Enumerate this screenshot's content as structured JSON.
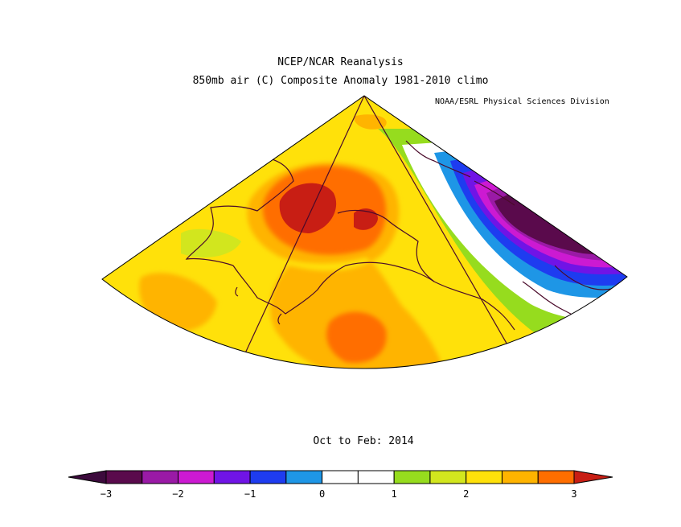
{
  "header": {
    "title": "NCEP/NCAR Reanalysis",
    "subtitle": "850mb air (C) Composite Anomaly 1981-2010 climo",
    "credit": "NOAA/ESRL Physical Sciences Division"
  },
  "period": "Oct to Feb: 2014",
  "colorbar": {
    "ticks": [
      "-3",
      "-2",
      "-1",
      "0",
      "1",
      "2",
      "3"
    ],
    "bins": [
      "#5a0a4c",
      "#9a1aa6",
      "#cc1ad2",
      "#7014e6",
      "#1e3cf0",
      "#1e96e6",
      "#ffffff",
      "#ffffff",
      "#96dc1e",
      "#d2e61e",
      "#ffe10a",
      "#ffb400",
      "#ff6e00"
    ],
    "under_color": "#3c0a3c",
    "over_color": "#c81e14"
  },
  "map": {
    "region": "Alaska / Bering Sea / NE Pacific",
    "variable": "850mb air temperature anomaly (C)",
    "features": {
      "warm_center": "Alaska interior, > 3 C",
      "secondary_warm": "Gulf of Alaska, ~2.5 C",
      "cold_center": "Canadian interior (NE), < -3 C"
    }
  }
}
